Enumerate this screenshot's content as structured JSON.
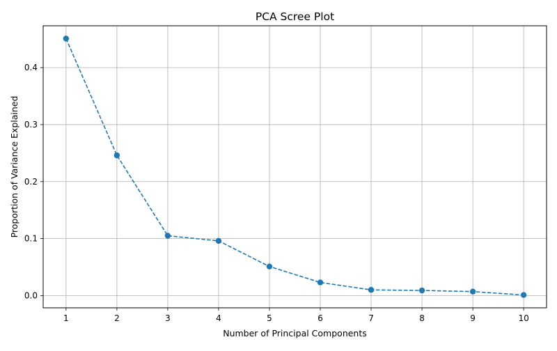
{
  "chart_data": {
    "type": "line",
    "title": "PCA Scree Plot",
    "xlabel": "Number of Principal Components",
    "ylabel": "Proportion of Variance Explained",
    "x": [
      1,
      2,
      3,
      4,
      5,
      6,
      7,
      8,
      9,
      10
    ],
    "series": [
      {
        "values": [
          0.451,
          0.246,
          0.105,
          0.096,
          0.051,
          0.023,
          0.01,
          0.009,
          0.007,
          0.001
        ]
      }
    ],
    "xticks": [
      1,
      2,
      3,
      4,
      5,
      6,
      7,
      8,
      9,
      10
    ],
    "xtick_labels": [
      "1",
      "2",
      "3",
      "4",
      "5",
      "6",
      "7",
      "8",
      "9",
      "10"
    ],
    "yticks": [
      0.0,
      0.1,
      0.2,
      0.3,
      0.4
    ],
    "ytick_labels": [
      "0.0",
      "0.1",
      "0.2",
      "0.3",
      "0.4"
    ],
    "xlim": [
      0.55,
      10.45
    ],
    "ylim": [
      -0.0215,
      0.4735
    ],
    "grid": true,
    "line_style": "dashed",
    "marker": "circle",
    "color": "#1f77b4"
  }
}
